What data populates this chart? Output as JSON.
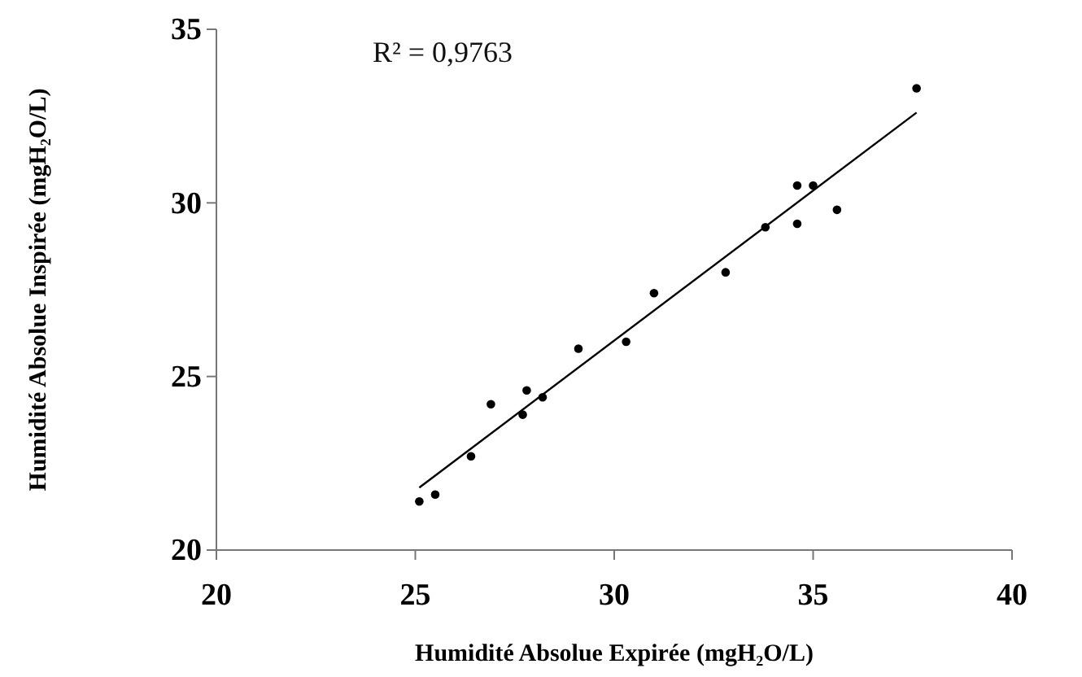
{
  "chart_data": {
    "type": "scatter",
    "xlabel": "Humidité Absolue Expirée (mgH₂O/L)",
    "ylabel": "Humidité Absolue Inspirée (mgH₂O/L)",
    "xlim": [
      20,
      40
    ],
    "ylim": [
      20,
      35
    ],
    "xticks": [
      20,
      25,
      30,
      35,
      40
    ],
    "yticks": [
      20,
      25,
      30,
      35
    ],
    "grid": false,
    "annotations": [
      "R² = 0,9763"
    ],
    "series": [
      {
        "color": "#000000",
        "marker": "circle",
        "x": [
          25.1,
          25.5,
          26.4,
          26.9,
          27.7,
          27.8,
          28.2,
          29.1,
          30.3,
          31.0,
          32.8,
          33.8,
          34.6,
          34.6,
          35.0,
          35.6,
          37.6
        ],
        "values": [
          21.4,
          21.6,
          22.7,
          24.2,
          23.9,
          24.6,
          24.4,
          25.8,
          26.0,
          27.4,
          28.0,
          29.3,
          30.5,
          29.4,
          30.5,
          29.8,
          33.3
        ]
      },
      {
        "type": "line",
        "color": "#000000",
        "marker": "none",
        "line_style": "solid",
        "x": [
          25.1,
          37.6
        ],
        "values": [
          21.8,
          32.6
        ]
      }
    ]
  }
}
